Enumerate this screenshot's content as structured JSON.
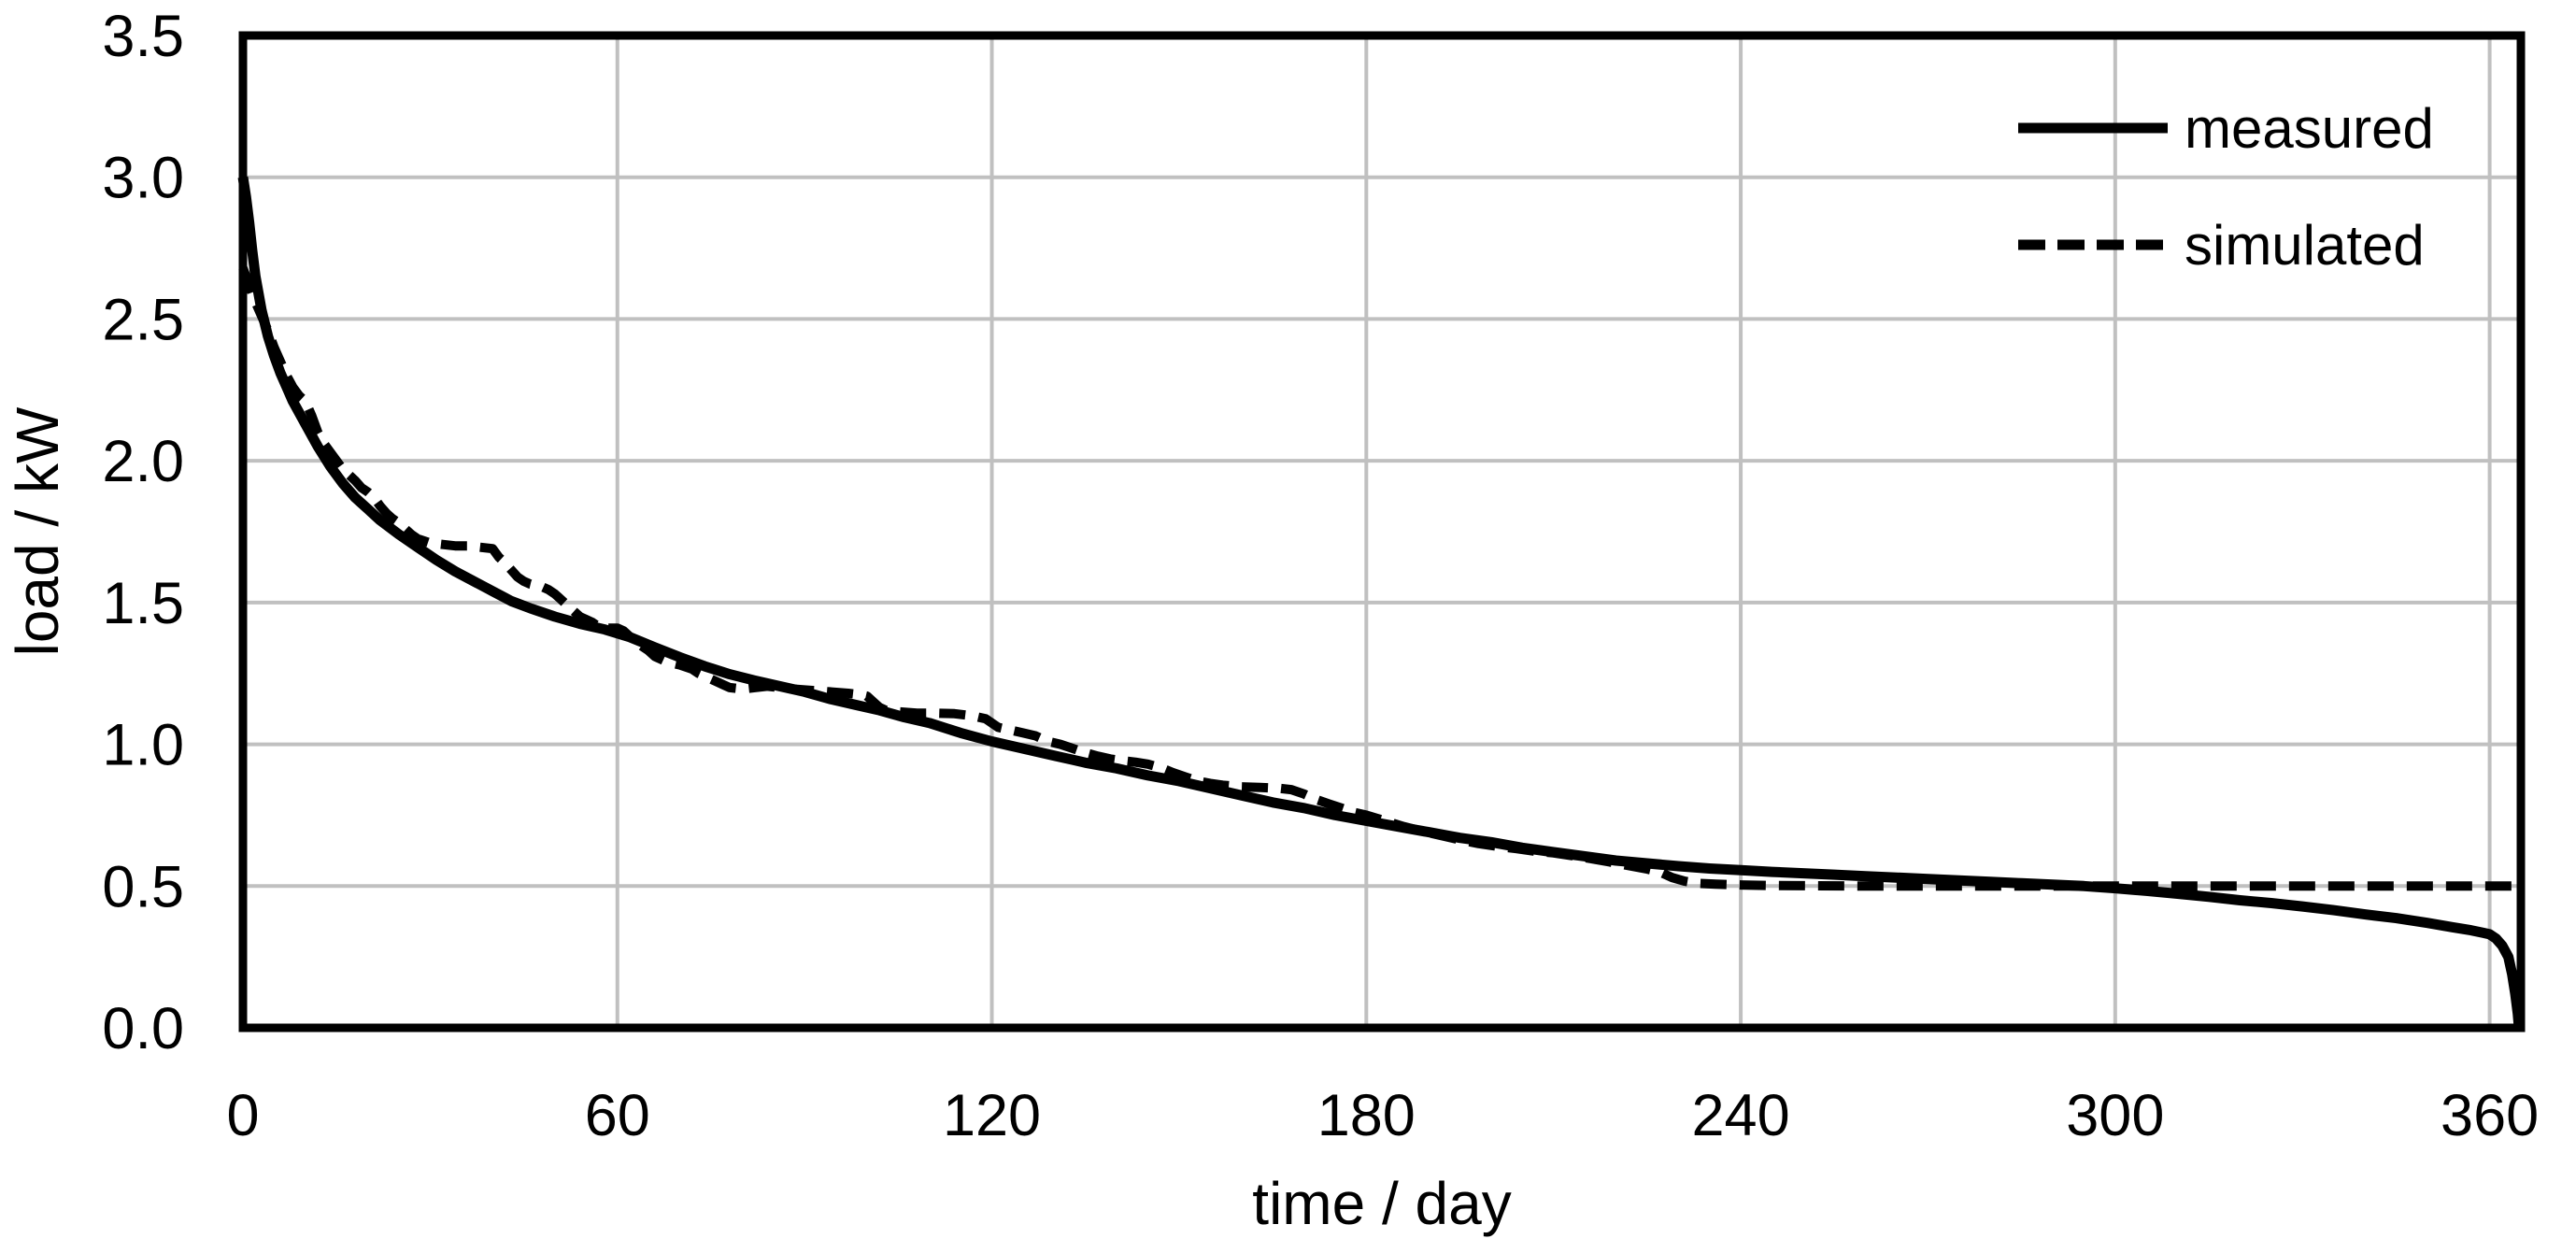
{
  "page": {
    "background": "#FFFFFF"
  },
  "colors": {
    "line": "#000000",
    "gridline": "#C0C0C0",
    "axis": "#000000",
    "text": "#000000",
    "background": "#FFFFFF"
  },
  "chart_data": {
    "type": "line",
    "title": "",
    "xlabel": "time / day",
    "ylabel": "load / kW",
    "xlim": [
      0,
      365
    ],
    "ylim": [
      0,
      3.5
    ],
    "x_ticks": [
      0,
      60,
      120,
      180,
      240,
      300,
      360
    ],
    "x_tick_labels": [
      "0",
      "60",
      "120",
      "180",
      "240",
      "300",
      "360"
    ],
    "y_ticks": [
      0,
      0.5,
      1,
      1.5,
      2,
      2.5,
      3,
      3.5
    ],
    "y_tick_labels": [
      "0.0",
      "0.5",
      "1.0",
      "1.5",
      "2.0",
      "2.5",
      "3.0",
      "3.5"
    ],
    "grid": true,
    "legend_position": "top-right-inside",
    "series": [
      {
        "name": "measured",
        "style": "solid",
        "color": "#000000",
        "points": [
          [
            0,
            3.0
          ],
          [
            0.5,
            2.93
          ],
          [
            1,
            2.84
          ],
          [
            1.5,
            2.74
          ],
          [
            2,
            2.65
          ],
          [
            3,
            2.53
          ],
          [
            4,
            2.44
          ],
          [
            5,
            2.37
          ],
          [
            6,
            2.31
          ],
          [
            7,
            2.26
          ],
          [
            8,
            2.21
          ],
          [
            10,
            2.13
          ],
          [
            12,
            2.05
          ],
          [
            14,
            1.98
          ],
          [
            16,
            1.92
          ],
          [
            18,
            1.87
          ],
          [
            20,
            1.83
          ],
          [
            22,
            1.79
          ],
          [
            25,
            1.74
          ],
          [
            28,
            1.695
          ],
          [
            31,
            1.65
          ],
          [
            34,
            1.61
          ],
          [
            37,
            1.575
          ],
          [
            40,
            1.54
          ],
          [
            43,
            1.505
          ],
          [
            46,
            1.48
          ],
          [
            50,
            1.45
          ],
          [
            54,
            1.425
          ],
          [
            58,
            1.405
          ],
          [
            62,
            1.378
          ],
          [
            66,
            1.342
          ],
          [
            70,
            1.307
          ],
          [
            74,
            1.275
          ],
          [
            78,
            1.247
          ],
          [
            82,
            1.225
          ],
          [
            86,
            1.205
          ],
          [
            90,
            1.185
          ],
          [
            94,
            1.16
          ],
          [
            98,
            1.14
          ],
          [
            102,
            1.12
          ],
          [
            106,
            1.095
          ],
          [
            110,
            1.075
          ],
          [
            115,
            1.04
          ],
          [
            120,
            1.01
          ],
          [
            125,
            0.985
          ],
          [
            130,
            0.96
          ],
          [
            135,
            0.935
          ],
          [
            140,
            0.915
          ],
          [
            145,
            0.89
          ],
          [
            150,
            0.87
          ],
          [
            155,
            0.845
          ],
          [
            160,
            0.82
          ],
          [
            165,
            0.795
          ],
          [
            170,
            0.775
          ],
          [
            175,
            0.75
          ],
          [
            180,
            0.73
          ],
          [
            185,
            0.71
          ],
          [
            190,
            0.69
          ],
          [
            195,
            0.67
          ],
          [
            200,
            0.655
          ],
          [
            205,
            0.635
          ],
          [
            210,
            0.62
          ],
          [
            215,
            0.605
          ],
          [
            220,
            0.59
          ],
          [
            225,
            0.58
          ],
          [
            230,
            0.57
          ],
          [
            235,
            0.562
          ],
          [
            240,
            0.556
          ],
          [
            245,
            0.55
          ],
          [
            250,
            0.545
          ],
          [
            255,
            0.54
          ],
          [
            260,
            0.535
          ],
          [
            265,
            0.53
          ],
          [
            270,
            0.525
          ],
          [
            275,
            0.52
          ],
          [
            280,
            0.515
          ],
          [
            285,
            0.51
          ],
          [
            290,
            0.505
          ],
          [
            295,
            0.5
          ],
          [
            300,
            0.492
          ],
          [
            305,
            0.483
          ],
          [
            310,
            0.473
          ],
          [
            315,
            0.462
          ],
          [
            320,
            0.45
          ],
          [
            325,
            0.44
          ],
          [
            330,
            0.428
          ],
          [
            335,
            0.415
          ],
          [
            340,
            0.4
          ],
          [
            345,
            0.387
          ],
          [
            350,
            0.37
          ],
          [
            354,
            0.355
          ],
          [
            357,
            0.344
          ],
          [
            359,
            0.335
          ],
          [
            360,
            0.33
          ],
          [
            361,
            0.315
          ],
          [
            362,
            0.29
          ],
          [
            363,
            0.25
          ],
          [
            363.6,
            0.19
          ],
          [
            364.1,
            0.12
          ],
          [
            364.5,
            0.05
          ],
          [
            364.7,
            0.0
          ]
        ]
      },
      {
        "name": "simulated",
        "style": "dashed",
        "color": "#000000",
        "points": [
          [
            0,
            2.68
          ],
          [
            1,
            2.62
          ],
          [
            2,
            2.56
          ],
          [
            3,
            2.51
          ],
          [
            4,
            2.46
          ],
          [
            5,
            2.4
          ],
          [
            6,
            2.35
          ],
          [
            7,
            2.3
          ],
          [
            8,
            2.26
          ],
          [
            9,
            2.23
          ],
          [
            10,
            2.21
          ],
          [
            11,
            2.16
          ],
          [
            12,
            2.1
          ],
          [
            13,
            2.06
          ],
          [
            14,
            2.03
          ],
          [
            15,
            2.0
          ],
          [
            16,
            1.97
          ],
          [
            17,
            1.95
          ],
          [
            18,
            1.93
          ],
          [
            19,
            1.905
          ],
          [
            20,
            1.89
          ],
          [
            21,
            1.87
          ],
          [
            22,
            1.84
          ],
          [
            23,
            1.815
          ],
          [
            24,
            1.795
          ],
          [
            25,
            1.78
          ],
          [
            26,
            1.76
          ],
          [
            27,
            1.74
          ],
          [
            28,
            1.725
          ],
          [
            30,
            1.71
          ],
          [
            32,
            1.705
          ],
          [
            34,
            1.7
          ],
          [
            36,
            1.7
          ],
          [
            38,
            1.695
          ],
          [
            40,
            1.69
          ],
          [
            41,
            1.66
          ],
          [
            42,
            1.64
          ],
          [
            43,
            1.615
          ],
          [
            44,
            1.59
          ],
          [
            45,
            1.575
          ],
          [
            46,
            1.565
          ],
          [
            47,
            1.56
          ],
          [
            48,
            1.555
          ],
          [
            49,
            1.545
          ],
          [
            50,
            1.53
          ],
          [
            51,
            1.51
          ],
          [
            52,
            1.49
          ],
          [
            53,
            1.47
          ],
          [
            54,
            1.45
          ],
          [
            55,
            1.44
          ],
          [
            56,
            1.43
          ],
          [
            57,
            1.415
          ],
          [
            58,
            1.41
          ],
          [
            60,
            1.41
          ],
          [
            61,
            1.4
          ],
          [
            62,
            1.38
          ],
          [
            63,
            1.36
          ],
          [
            64,
            1.345
          ],
          [
            65,
            1.33
          ],
          [
            66,
            1.31
          ],
          [
            67,
            1.3
          ],
          [
            68,
            1.29
          ],
          [
            70,
            1.28
          ],
          [
            72,
            1.265
          ],
          [
            73,
            1.25
          ],
          [
            74,
            1.24
          ],
          [
            75,
            1.23
          ],
          [
            76,
            1.22
          ],
          [
            77,
            1.21
          ],
          [
            78,
            1.2
          ],
          [
            80,
            1.195
          ],
          [
            82,
            1.2
          ],
          [
            84,
            1.205
          ],
          [
            86,
            1.2
          ],
          [
            88,
            1.195
          ],
          [
            91,
            1.19
          ],
          [
            94,
            1.185
          ],
          [
            97,
            1.18
          ],
          [
            99,
            1.175
          ],
          [
            100,
            1.17
          ],
          [
            101,
            1.15
          ],
          [
            102,
            1.13
          ],
          [
            103,
            1.12
          ],
          [
            105,
            1.115
          ],
          [
            108,
            1.11
          ],
          [
            111,
            1.11
          ],
          [
            114,
            1.108
          ],
          [
            117,
            1.1
          ],
          [
            119,
            1.09
          ],
          [
            121,
            1.06
          ],
          [
            123,
            1.05
          ],
          [
            125,
            1.04
          ],
          [
            127,
            1.03
          ],
          [
            129,
            1.01
          ],
          [
            131,
            1.0
          ],
          [
            133,
            0.985
          ],
          [
            135,
            0.97
          ],
          [
            137,
            0.958
          ],
          [
            139,
            0.948
          ],
          [
            141,
            0.942
          ],
          [
            143,
            0.937
          ],
          [
            145,
            0.93
          ],
          [
            147,
            0.918
          ],
          [
            149,
            0.9
          ],
          [
            151,
            0.885
          ],
          [
            153,
            0.87
          ],
          [
            155,
            0.862
          ],
          [
            157,
            0.856
          ],
          [
            160,
            0.85
          ],
          [
            163,
            0.848
          ],
          [
            166,
            0.845
          ],
          [
            168,
            0.84
          ],
          [
            170,
            0.825
          ],
          [
            172,
            0.805
          ],
          [
            174,
            0.79
          ],
          [
            176,
            0.775
          ],
          [
            178,
            0.76
          ],
          [
            180,
            0.75
          ],
          [
            183,
            0.73
          ],
          [
            186,
            0.71
          ],
          [
            189,
            0.693
          ],
          [
            192,
            0.678
          ],
          [
            195,
            0.663
          ],
          [
            198,
            0.65
          ],
          [
            201,
            0.64
          ],
          [
            204,
            0.632
          ],
          [
            207,
            0.623
          ],
          [
            210,
            0.617
          ],
          [
            213,
            0.607
          ],
          [
            216,
            0.597
          ],
          [
            219,
            0.585
          ],
          [
            222,
            0.572
          ],
          [
            225,
            0.56
          ],
          [
            227,
            0.55
          ],
          [
            229,
            0.53
          ],
          [
            231,
            0.517
          ],
          [
            233,
            0.51
          ],
          [
            236,
            0.507
          ],
          [
            240,
            0.504
          ],
          [
            245,
            0.502
          ],
          [
            252,
            0.501
          ],
          [
            260,
            0.5
          ],
          [
            280,
            0.5
          ],
          [
            300,
            0.5
          ],
          [
            320,
            0.5
          ],
          [
            340,
            0.5
          ],
          [
            365,
            0.5
          ]
        ]
      }
    ]
  }
}
